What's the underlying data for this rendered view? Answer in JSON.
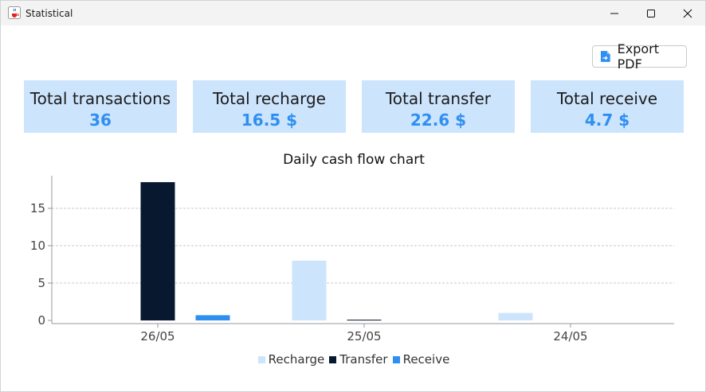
{
  "window": {
    "title": "Statistical",
    "app_icon": "java-cup-icon",
    "controls": [
      "minimize-icon",
      "maximize-icon",
      "close-icon"
    ]
  },
  "toolbar": {
    "export_label": "Export PDF",
    "export_icon": "pdf-export-icon"
  },
  "summary": [
    {
      "label": "Total transactions",
      "value": "36"
    },
    {
      "label": "Total recharge",
      "value": "16.5 $"
    },
    {
      "label": "Total transfer",
      "value": "22.6 $"
    },
    {
      "label": "Total receive",
      "value": "4.7 $"
    }
  ],
  "colors": {
    "card_bg": "#cce4fc",
    "accent": "#2f8ff0",
    "recharge": "#cce4fc",
    "transfer": "#07182f",
    "receive": "#2f8ff0"
  },
  "chart_data": {
    "type": "bar",
    "title": "Daily cash flow chart",
    "categories": [
      "26/05",
      "25/05",
      "24/05"
    ],
    "series": [
      {
        "name": "Recharge",
        "values": [
          0,
          8.0,
          1.0
        ]
      },
      {
        "name": "Transfer",
        "values": [
          18.5,
          0.1,
          0
        ]
      },
      {
        "name": "Receive",
        "values": [
          0.7,
          0,
          0
        ]
      }
    ],
    "yticks": [
      0,
      5,
      10,
      15
    ],
    "ylim": [
      0,
      19.5
    ],
    "grid": "horizontal-dashed",
    "legend": "bottom-center"
  }
}
